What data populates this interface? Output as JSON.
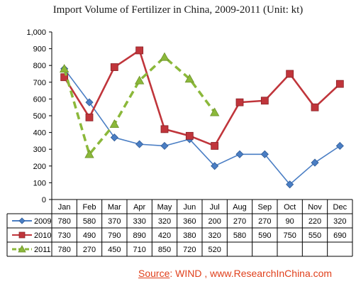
{
  "title": "Import Volume of Fertilizer in China, 2009-2011 (Unit: kt)",
  "source": {
    "label": "Source",
    "text": ": WIND , www.ResearchInChina.com"
  },
  "colors": {
    "s2009": "#4a7ec4",
    "s2010": "#c0353b",
    "s2011": "#8bb83a",
    "grid": "#000000",
    "source": "#e0401c"
  },
  "chart_data": {
    "type": "line",
    "title": "Import Volume of Fertilizer in China, 2009-2011 (Unit: kt)",
    "categories": [
      "Jan",
      "Feb",
      "Mar",
      "Apr",
      "May",
      "Jun",
      "Jul",
      "Aug",
      "Sep",
      "Oct",
      "Nov",
      "Dec"
    ],
    "ylim": [
      0,
      1000
    ],
    "yticks": [
      "0",
      "100",
      "200",
      "300",
      "400",
      "500",
      "600",
      "700",
      "800",
      "900",
      "1,000"
    ],
    "grid": false,
    "legend": "data-table",
    "series": [
      {
        "name": "2009",
        "values": [
          780,
          580,
          370,
          330,
          320,
          360,
          200,
          270,
          270,
          90,
          220,
          320
        ],
        "marker": "diamond",
        "color": "#4a7ec4",
        "style": "solid"
      },
      {
        "name": "2010",
        "values": [
          730,
          490,
          790,
          890,
          420,
          380,
          320,
          580,
          590,
          750,
          550,
          690
        ],
        "marker": "square",
        "color": "#c0353b",
        "style": "solid"
      },
      {
        "name": "2011",
        "values": [
          780,
          270,
          450,
          710,
          850,
          720,
          520,
          null,
          null,
          null,
          null,
          null
        ],
        "marker": "triangle",
        "color": "#8bb83a",
        "style": "dashed"
      }
    ]
  }
}
